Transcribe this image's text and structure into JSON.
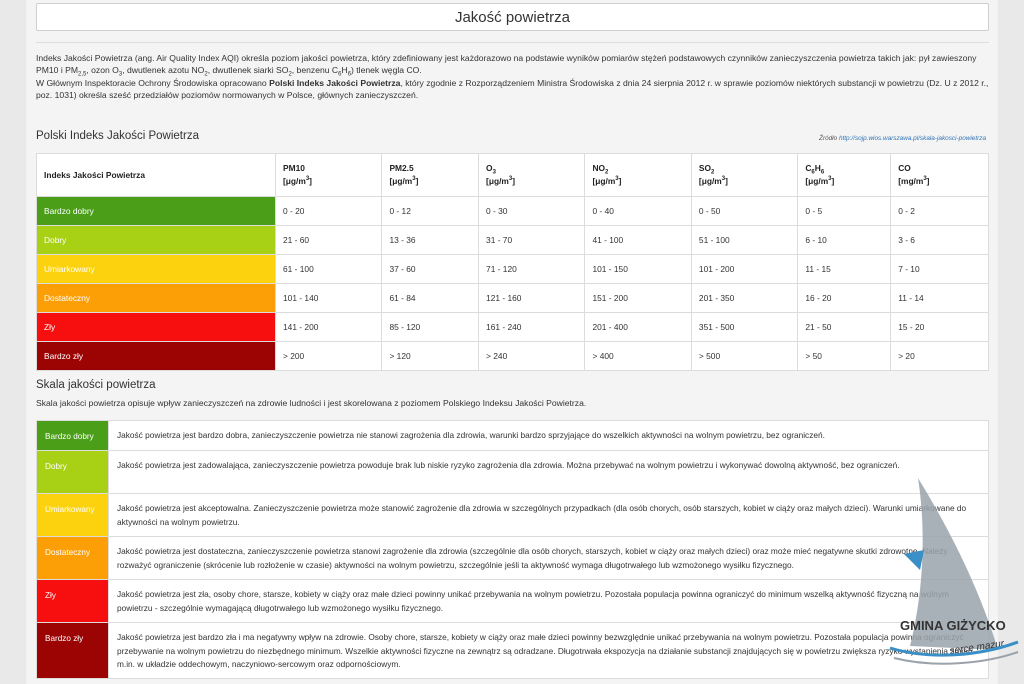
{
  "page_title": "Jakość powietrza",
  "intro": {
    "p1": {
      "a": "Indeks Jakości Powietrza (ang. Air Quality Index AQI) określa poziom jakości powietrza, który zdefiniowany jest każdorazowo na podstawie wyników pomiarów stężeń podstawowych czynników zanieczyszczenia powietrza takich jak:  pył zawieszony PM10 i PM",
      "a_sub": "2,5",
      "b": ", ozon O",
      "b_sub": "3",
      "c": ", dwutlenek azotu NO",
      "c_sub": "2",
      "d": ", dwutlenek siarki SO",
      "d_sub": "2",
      "e": ", benzenu C",
      "e_sub1": "6",
      "f": "H",
      "f_sub": "6",
      "g": ") tlenek węgla CO."
    },
    "p2": {
      "a": "W Głównym Inspektoracie Ochrony Środowiska opracowano ",
      "bold": "Polski Indeks Jakości Powietrza",
      "b": ", który zgodnie z Rozporządzeniem Ministra Środowiska z dnia 24 sierpnia 2012 r. w sprawie poziomów niektórych substancji w powietrzu (Dz. U z 2012 r., poz. 1031) określa sześć przedziałów poziomów normowanych w Polsce, głównych zanieczyszczeń."
    }
  },
  "aqi_section": {
    "heading": "Polski Indeks Jakości Powietrza",
    "source_label": "Źródło",
    "source_link": "http://sojp.wios.warszawa.pl/skala-jakosci-powietrza"
  },
  "aqi_table": {
    "header_first": "Indeks Jakości Powietrza",
    "unit_ug": "[μg/m",
    "unit_mg": "[mg/m",
    "unit_exp": "3",
    "unit_close": "]",
    "columns": [
      {
        "pre": "PM10",
        "sub": "",
        "post": ""
      },
      {
        "pre": "PM2.5",
        "sub": "",
        "post": ""
      },
      {
        "pre": "O",
        "sub": "3",
        "post": ""
      },
      {
        "pre": "NO",
        "sub": "2",
        "post": ""
      },
      {
        "pre": "SO",
        "sub": "2",
        "post": ""
      },
      {
        "pre": "C",
        "sub": "6",
        "post": "H",
        "sub2": "6"
      },
      {
        "pre": "CO",
        "sub": "",
        "post": ""
      }
    ],
    "rows": [
      {
        "label": "Bardzo dobry",
        "color": "#4a9e18",
        "values": [
          "0 - 20",
          "0 - 12",
          "0 - 30",
          "0 - 40",
          "0 - 50",
          "0 - 5",
          "0 - 2"
        ]
      },
      {
        "label": "Dobry",
        "color": "#a8d015",
        "values": [
          "21 - 60",
          "13 - 36",
          "31 - 70",
          "41 - 100",
          "51 - 100",
          "6 - 10",
          "3 - 6"
        ]
      },
      {
        "label": "Umiarkowany",
        "color": "#fcd20e",
        "values": [
          "61 - 100",
          "37 - 60",
          "71 - 120",
          "101 - 150",
          "101 - 200",
          "11 - 15",
          "7 - 10"
        ]
      },
      {
        "label": "Dostateczny",
        "color": "#fc9f07",
        "values": [
          "101 - 140",
          "61 - 84",
          "121 - 160",
          "151 - 200",
          "201 - 350",
          "16 - 20",
          "11 - 14"
        ]
      },
      {
        "label": "Zły",
        "color": "#f70e0e",
        "values": [
          "141 - 200",
          "85 - 120",
          "161 - 240",
          "201 - 400",
          "351 - 500",
          "21 - 50",
          "15 - 20"
        ]
      },
      {
        "label": "Bardzo zły",
        "color": "#9c0404",
        "values": [
          "> 200",
          "> 120",
          "> 240",
          "> 400",
          "> 500",
          "> 50",
          "> 20"
        ]
      }
    ]
  },
  "scale_section": {
    "heading": "Skala jakości powietrza",
    "description": "Skala jakości powietrza opisuje wpływ zanieczyszczeń na zdrowie ludności i jest skorelowana z poziomem Polskiego Indeksu Jakości Powietrza."
  },
  "scale_rows": [
    {
      "label": "Bardzo dobry",
      "color": "#4a9e18",
      "text": "Jakość powietrza jest bardzo dobra, zanieczyszczenie powietrza nie stanowi zagrożenia dla zdrowia, warunki bardzo sprzyjające do wszelkich aktywności na wolnym powietrzu, bez ograniczeń."
    },
    {
      "label": "Dobry",
      "color": "#a8d015",
      "text": "Jakość powietrza jest zadowalająca, zanieczyszczenie powietrza powoduje brak lub niskie ryzyko zagrożenia dla zdrowia. Można przebywać na wolnym powietrzu i wykonywać dowolną aktywność, bez ograniczeń."
    },
    {
      "label": "Umiarkowany",
      "color": "#fcd20e",
      "text": "Jakość powietrza jest akceptowalna. Zanieczyszczenie powietrza może stanowić zagrożenie dla zdrowia w szczególnych przypadkach (dla osób chorych, osób starszych, kobiet w ciąży oraz małych dzieci). Warunki umiarkowane do aktywności na wolnym powietrzu."
    },
    {
      "label": "Dostateczny",
      "color": "#fc9f07",
      "text": "Jakość powietrza jest dostateczna, zanieczyszczenie powietrza stanowi zagrożenie dla zdrowia (szczególnie dla osób chorych, starszych, kobiet w ciąży oraz małych dzieci) oraz może mieć negatywne skutki zdrowotne. Należy rozważyć ograniczenie (skrócenie lub rozłożenie w czasie) aktywności na wolnym powietrzu, szczególnie jeśli ta aktywność wymaga długotrwałego lub wzmożonego wysiłku fizycznego."
    },
    {
      "label": "Zły",
      "color": "#f70e0e",
      "text": "Jakość powietrza jest zła, osoby chore, starsze, kobiety w ciąży oraz małe dzieci powinny unikać przebywania na wolnym powietrzu. Pozostała populacja powinna ograniczyć do minimum wszelką aktywność fizyczną na wolnym powietrzu - szczególnie wymagającą długotrwałego lub wzmożonego wysiłku fizycznego."
    },
    {
      "label": "Bardzo zły",
      "color": "#9c0404",
      "text": "Jakość powietrza jest bardzo zła i ma negatywny wpływ na zdrowie. Osoby chore, starsze, kobiety w ciąży oraz małe dzieci powinny bezwzględnie unikać przebywania na wolnym powietrzu. Pozostała populacja powinna ograniczyć przebywanie na wolnym powietrzu do niezbędnego minimum. Wszelkie aktywności fizyczne na zewnątrz są odradzane. Długotrwała ekspozycja na działanie substancji znajdujących się w powietrzu zwiększa ryzyko wystąpienia zmian m.in. w układzie oddechowym, naczyniowo-sercowym oraz odpornościowym."
    }
  ],
  "logo": {
    "name": "GMINA GIŻYCKO",
    "tagline": "serce mazur",
    "colors": {
      "sail": "#9aa3ab",
      "blue": "#3a8fc7",
      "text": "#333333"
    }
  }
}
